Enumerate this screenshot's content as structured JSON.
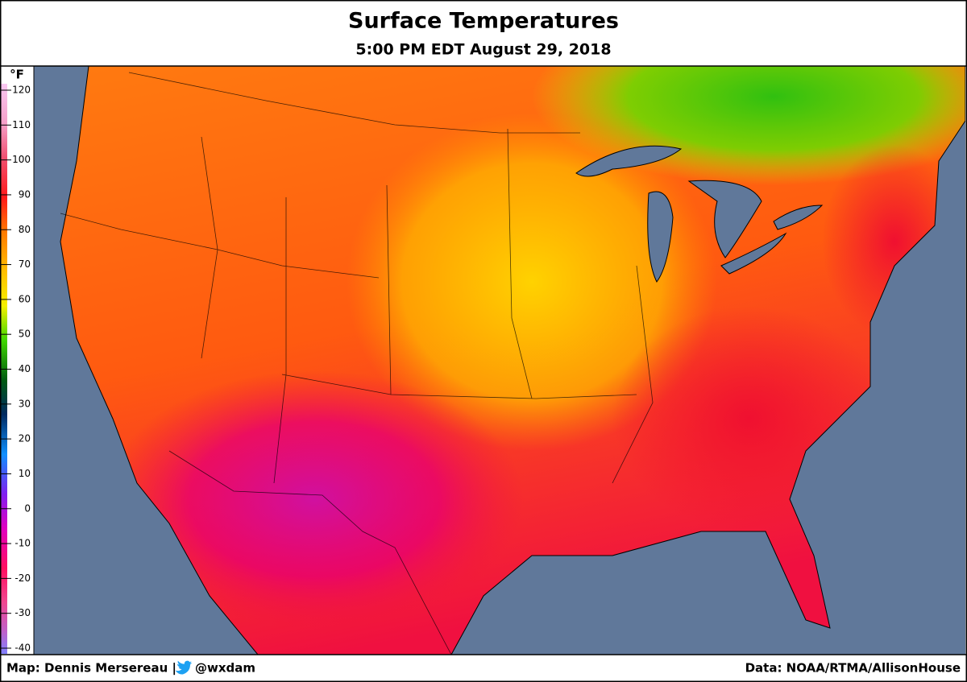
{
  "header": {
    "title": "Surface Temperatures",
    "subtitle": "5:00 PM EDT August 29, 2018"
  },
  "legend": {
    "unit": "°F",
    "ticks": [
      120,
      110,
      100,
      90,
      80,
      70,
      60,
      50,
      40,
      30,
      20,
      10,
      0,
      -10,
      -20,
      -30,
      -40
    ]
  },
  "footer": {
    "credit": "Map: Dennis Mersereau |",
    "handle": "@wxdam",
    "source": "Data: NOAA/RTMA/AllisonHouse"
  }
}
